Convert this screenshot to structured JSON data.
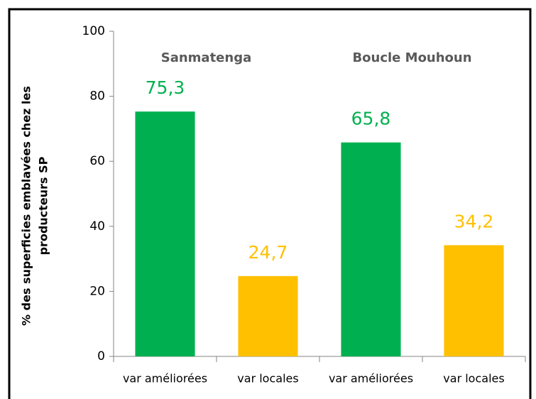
{
  "chart_data": {
    "type": "bar",
    "ylabel": [
      "% des superficies emblavées chez les",
      "producteurs SP"
    ],
    "categories": [
      "var améliorées",
      "var locales",
      "var améliorées",
      "var locales"
    ],
    "values": [
      75.3,
      24.7,
      65.8,
      34.2
    ],
    "value_labels": [
      "75,3",
      "24,7",
      "65,8",
      "34,2"
    ],
    "colors": [
      "#00b050",
      "#ffc000",
      "#00b050",
      "#ffc000"
    ],
    "annotations": [
      "Sanmatenga",
      "Boucle Mouhoun"
    ],
    "ylim": [
      0,
      100
    ],
    "yticks": [
      0,
      20,
      40,
      60,
      80,
      100
    ],
    "grid": false
  }
}
